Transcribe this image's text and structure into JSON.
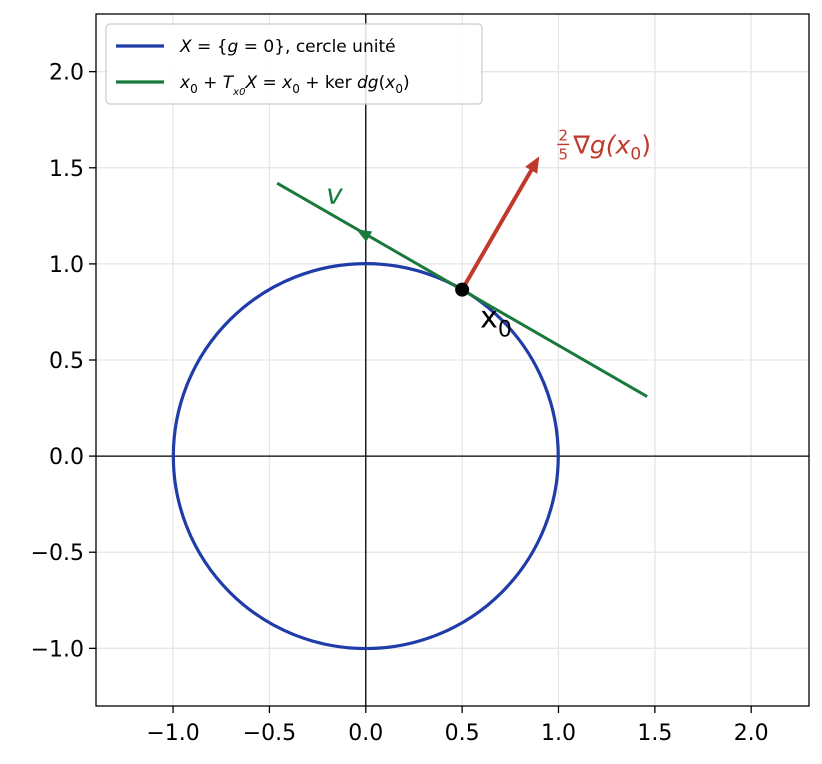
{
  "chart_data": {
    "type": "line",
    "title": "",
    "xlabel": "",
    "ylabel": "",
    "xlim": [
      -1.4,
      2.3
    ],
    "ylim": [
      -1.3,
      2.3
    ],
    "grid": true,
    "legend_position": "top-left",
    "xticks": [
      -1.0,
      -0.5,
      0.0,
      0.5,
      1.0,
      1.5,
      2.0
    ],
    "xtick_labels": [
      "−1.0",
      "−0.5",
      "0.0",
      "0.5",
      "1.0",
      "1.5",
      "2.0"
    ],
    "yticks": [
      -1.0,
      -0.5,
      0.0,
      0.5,
      1.0,
      1.5,
      2.0
    ],
    "ytick_labels": [
      "−1.0",
      "−0.5",
      "0.0",
      "0.5",
      "1.0",
      "1.5",
      "2.0"
    ],
    "series": [
      {
        "name": "X = {g = 0}, cercle unité",
        "legend_segments": [
          {
            "text": "X",
            "style": "italic",
            "shift": "none"
          },
          {
            "text": " = {",
            "style": "normal",
            "shift": "none"
          },
          {
            "text": "g",
            "style": "italic",
            "shift": "none"
          },
          {
            "text": " = 0}, cercle unité",
            "style": "normal",
            "shift": "none"
          }
        ],
        "shape": "circle",
        "center": [
          0,
          0
        ],
        "radius": 1,
        "color": "#1f3ca8"
      },
      {
        "name": "x0 + Tx0X = x0 + ker dg(x0)",
        "legend_segments": [
          {
            "text": "x",
            "style": "italic",
            "shift": "none"
          },
          {
            "text": "0",
            "style": "normal",
            "shift": "sub"
          },
          {
            "text": " + ",
            "style": "normal",
            "shift": "none"
          },
          {
            "text": "T",
            "style": "italic",
            "shift": "none"
          },
          {
            "text": "x0",
            "style": "italic",
            "shift": "subsub"
          },
          {
            "text": "X",
            "style": "italic",
            "shift": "none"
          },
          {
            "text": " = ",
            "style": "normal",
            "shift": "none"
          },
          {
            "text": "x",
            "style": "italic",
            "shift": "none"
          },
          {
            "text": "0",
            "style": "normal",
            "shift": "sub"
          },
          {
            "text": " + ker ",
            "style": "normal",
            "shift": "none"
          },
          {
            "text": "dg",
            "style": "italic",
            "shift": "none"
          },
          {
            "text": "(",
            "style": "normal",
            "shift": "none"
          },
          {
            "text": "x",
            "style": "italic",
            "shift": "none"
          },
          {
            "text": "0",
            "style": "normal",
            "shift": "sub"
          },
          {
            "text": ")",
            "style": "normal",
            "shift": "none"
          }
        ],
        "shape": "line",
        "points": [
          [
            -0.46,
            1.42
          ],
          [
            1.46,
            0.31
          ]
        ],
        "color": "#1a7a3c"
      }
    ],
    "point": {
      "x": 0.5,
      "y": 0.866,
      "label_main": "x",
      "label_sub": "0",
      "color": "#000000"
    },
    "gradient_arrow": {
      "from": [
        0.5,
        0.866
      ],
      "to": [
        0.9,
        1.559
      ],
      "color": "#c0392b",
      "label_frac_num": "2",
      "label_frac_den": "5",
      "label_main": "∇g(x",
      "label_sub": "0",
      "label_close": ")"
    },
    "tangent_arrow": {
      "from": [
        0.5,
        0.866
      ],
      "to": [
        -0.05,
        1.18
      ],
      "color": "#1a7a3c",
      "label": "v"
    }
  }
}
